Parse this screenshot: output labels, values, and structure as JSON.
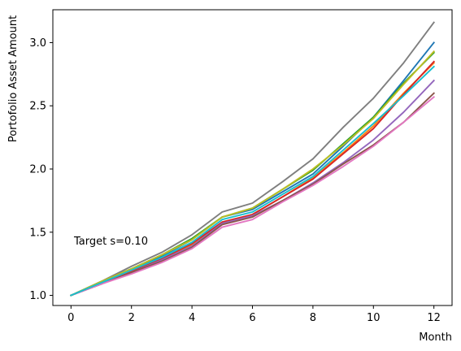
{
  "chart_data": {
    "type": "line",
    "title": "",
    "xlabel": "Month",
    "ylabel": "Portofolio Asset Amount",
    "xlim": [
      -0.6,
      12.6
    ],
    "ylim": [
      0.92,
      3.26
    ],
    "xticks": [
      0,
      2,
      4,
      6,
      8,
      10,
      12
    ],
    "xtick_labels": [
      "0",
      "2",
      "4",
      "6",
      "8",
      "10",
      "12"
    ],
    "yticks": [
      1.0,
      1.5,
      2.0,
      2.5,
      3.0
    ],
    "ytick_labels": [
      "1.0",
      "1.5",
      "2.0",
      "2.5",
      "3.0"
    ],
    "grid": false,
    "legend": "none",
    "annotation": "Target s=0.10",
    "x": [
      0,
      1,
      2,
      3,
      4,
      5,
      6,
      7,
      8,
      9,
      10,
      11,
      12
    ],
    "series": [
      {
        "color": "#1f77b4",
        "values": [
          1.0,
          1.11,
          1.21,
          1.31,
          1.44,
          1.62,
          1.68,
          1.82,
          1.96,
          2.18,
          2.41,
          2.7,
          3.0
        ]
      },
      {
        "color": "#ff7f0e",
        "values": [
          1.0,
          1.1,
          1.19,
          1.29,
          1.4,
          1.58,
          1.64,
          1.78,
          1.93,
          2.13,
          2.34,
          2.6,
          2.84
        ]
      },
      {
        "color": "#2ca02c",
        "values": [
          1.0,
          1.11,
          1.21,
          1.32,
          1.45,
          1.62,
          1.69,
          1.84,
          1.99,
          2.2,
          2.41,
          2.68,
          2.92
        ]
      },
      {
        "color": "#d62728",
        "values": [
          1.0,
          1.1,
          1.19,
          1.29,
          1.41,
          1.58,
          1.64,
          1.78,
          1.92,
          2.12,
          2.32,
          2.59,
          2.85
        ]
      },
      {
        "color": "#9467bd",
        "values": [
          1.0,
          1.09,
          1.18,
          1.28,
          1.39,
          1.57,
          1.63,
          1.75,
          1.89,
          2.05,
          2.23,
          2.45,
          2.7
        ]
      },
      {
        "color": "#8c564b",
        "values": [
          1.0,
          1.09,
          1.18,
          1.27,
          1.38,
          1.56,
          1.62,
          1.75,
          1.88,
          2.04,
          2.19,
          2.37,
          2.6
        ]
      },
      {
        "color": "#e377c2",
        "values": [
          1.0,
          1.09,
          1.17,
          1.26,
          1.37,
          1.54,
          1.6,
          1.74,
          1.87,
          2.02,
          2.18,
          2.37,
          2.57
        ]
      },
      {
        "color": "#7f7f7f",
        "values": [
          1.0,
          1.11,
          1.23,
          1.34,
          1.48,
          1.66,
          1.73,
          1.9,
          2.08,
          2.33,
          2.56,
          2.84,
          3.16
        ]
      },
      {
        "color": "#bcbd22",
        "values": [
          1.0,
          1.11,
          1.21,
          1.32,
          1.44,
          1.62,
          1.69,
          1.84,
          2.0,
          2.19,
          2.4,
          2.67,
          2.93
        ]
      },
      {
        "color": "#17becf",
        "values": [
          1.0,
          1.1,
          1.2,
          1.3,
          1.42,
          1.6,
          1.66,
          1.8,
          1.94,
          2.15,
          2.36,
          2.58,
          2.81
        ]
      }
    ]
  }
}
